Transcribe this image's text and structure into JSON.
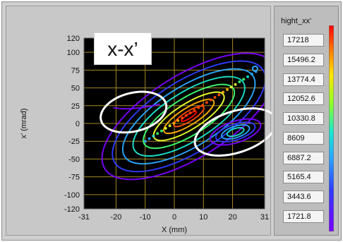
{
  "plot": {
    "label_badge": "x-x’",
    "x_axis_title": "X (mm)",
    "y_axis_title": "x’ (mrad)",
    "x_ticks": [
      "-31",
      "-20",
      "-10",
      "0",
      "10",
      "20",
      "31"
    ],
    "y_ticks": [
      "120",
      "100",
      "75",
      "50",
      "25",
      "0",
      "-25",
      "-50",
      "-75",
      "-100",
      "-120"
    ],
    "colors": {
      "plot_background": "#000000",
      "grid": "#a58a26",
      "annotation_ellipse": "#ffffff",
      "contour_palette": [
        "#7a00ff",
        "#2f3bff",
        "#2aa8ff",
        "#18e6d0",
        "#3cff72",
        "#e9ff2a",
        "#ffb300",
        "#ff4b00",
        "#ff0000"
      ]
    }
  },
  "chart_data": {
    "type": "heatmap",
    "title": "",
    "xlabel": "X (mm)",
    "ylabel": "x’ (mrad)",
    "xlim": [
      -31,
      31
    ],
    "ylim": [
      -120,
      120
    ],
    "grid": true,
    "x_ticks": [
      -31,
      -20,
      -10,
      0,
      10,
      20,
      31
    ],
    "y_ticks": [
      120,
      100,
      75,
      50,
      25,
      0,
      -25,
      -50,
      -75,
      -100,
      -120
    ],
    "legend_title": "hight_xx'",
    "legend_levels": [
      17218,
      15496.2,
      13774.4,
      12052.6,
      10330.8,
      8609,
      6887.2,
      5165.4,
      3443.6,
      1721.8
    ],
    "legend_placement": "right",
    "annotations": [
      {
        "type": "ellipse",
        "cx": -14,
        "cy": 16,
        "rx": 11.5,
        "ry": 27,
        "rotate_deg": -14
      },
      {
        "type": "ellipse",
        "cx": 21,
        "cy": -12,
        "rx": 14.5,
        "ry": 29,
        "rotate_deg": -18
      }
    ]
  },
  "legend": {
    "title": "hight_xx'",
    "values": [
      "17218",
      "15496.2",
      "13774.4",
      "12052.6",
      "10330.8",
      "8609",
      "6887.2",
      "5165.4",
      "3443.6",
      "1721.8"
    ]
  }
}
